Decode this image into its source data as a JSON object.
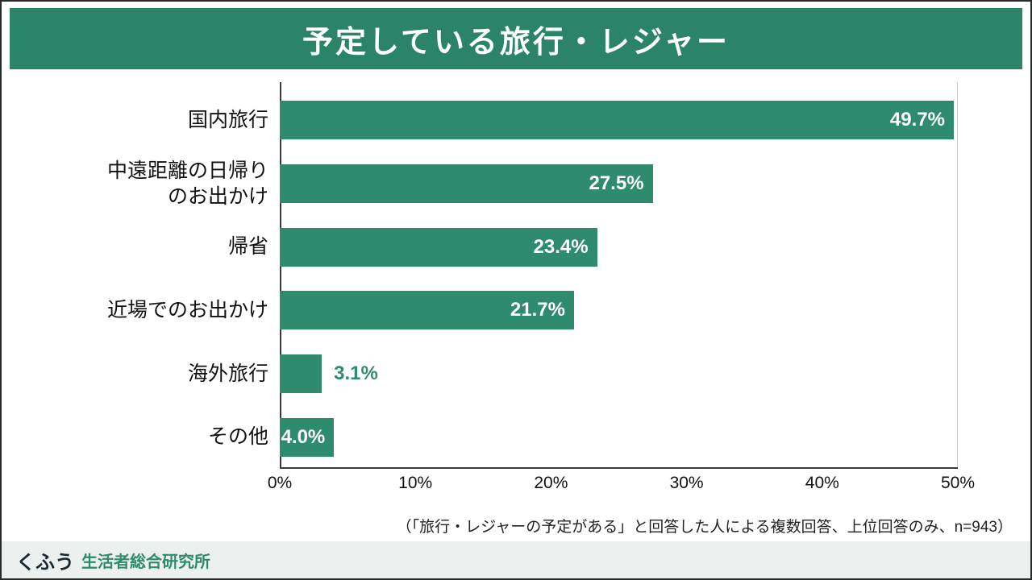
{
  "title": "予定している旅行・レジャー",
  "chart_data": {
    "type": "bar",
    "orientation": "horizontal",
    "categories": [
      "国内旅行",
      "中遠距離の日帰り\nのお出かけ",
      "帰省",
      "近場でのお出かけ",
      "海外旅行",
      "その他"
    ],
    "values": [
      49.7,
      27.5,
      23.4,
      21.7,
      3.1,
      4.0
    ],
    "value_labels": [
      "49.7%",
      "27.5%",
      "23.4%",
      "21.7%",
      "3.1%",
      "4.0%"
    ],
    "label_position": [
      "inside",
      "inside",
      "inside",
      "inside",
      "outside",
      "inside"
    ],
    "xlim": [
      0,
      50
    ],
    "x_ticks": [
      "0%",
      "10%",
      "20%",
      "30%",
      "40%",
      "50%"
    ],
    "grid": "single light vertical line at 50%, dark left and bottom axis lines",
    "legend": "none"
  },
  "footnote": "（「旅行・レジャーの予定がある」と回答した人による複数回答、上位回答のみ、n=943）",
  "footer": {
    "brand": "くふう",
    "institute": "生活者総合研究所"
  },
  "colors": {
    "header_bg": "#2B8467",
    "bar": "#2E8B6E",
    "bar_label_inside": "#FFFFFF",
    "bar_label_outside": "#2E8B6E",
    "footer_bg": "#ECF1EF",
    "brand_text": "#1B2733",
    "institute_text": "#2E8B6E",
    "axis": "#3A3A3A",
    "gridline": "#C8CCCA"
  }
}
